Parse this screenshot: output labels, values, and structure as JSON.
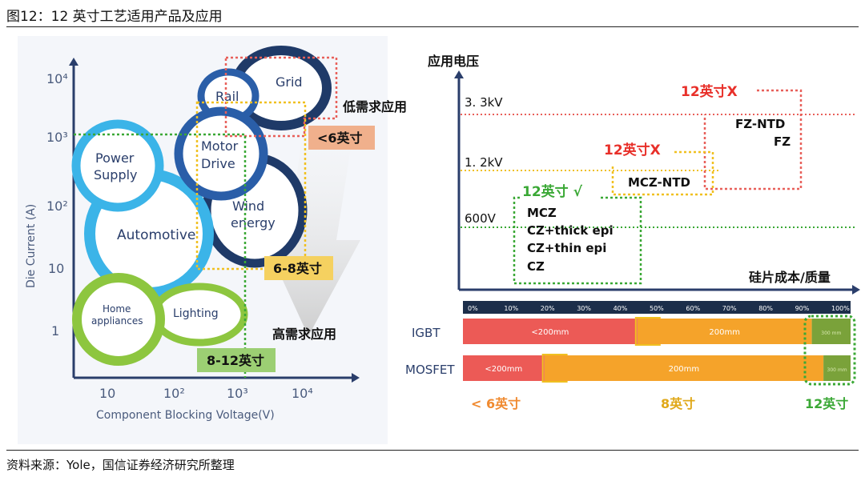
{
  "figure_title": "图12：12 英寸工艺适用产品及应用",
  "source": "资料来源：Yole，国信证券经济研究所整理",
  "colors": {
    "blue_dark": "#1f3a68",
    "blue_mid": "#2a5ea8",
    "blue_light": "#3bb4e8",
    "green": "#8dc63f",
    "red_dotted": "#e8605a",
    "yellow_dotted": "#f0c020",
    "green_dotted": "#3aa835",
    "orange_bar": "#f5a32a",
    "red_bar": "#ec5a56",
    "green_bar": "#7aa23a",
    "axis_blue": "#2a3e6b"
  },
  "chart_data": [
    {
      "type": "bubble",
      "panel": "left",
      "xlabel": "Component Blocking Voltage(V)",
      "ylabel": "Die Current (A)",
      "x_ticks": [
        "10",
        "10²",
        "10³",
        "10⁴"
      ],
      "y_ticks": [
        "1",
        "10",
        "10²",
        "10³",
        "10⁴"
      ],
      "bubbles": [
        {
          "name": "Grid",
          "color": "blue_dark"
        },
        {
          "name": "Rail",
          "color": "blue_mid"
        },
        {
          "name": "Motor Drive",
          "color": "blue_mid",
          "lines": [
            "Motor",
            "Drive"
          ]
        },
        {
          "name": "Wind energy",
          "color": "blue_dark",
          "lines": [
            "Wind",
            "energy"
          ]
        },
        {
          "name": "Power Supply",
          "color": "blue_light",
          "lines": [
            "Power",
            "Supply"
          ]
        },
        {
          "name": "Automotive",
          "color": "blue_light"
        },
        {
          "name": "Home appliances",
          "color": "green",
          "lines": [
            "Home",
            "appliances"
          ]
        },
        {
          "name": "Lighting",
          "color": "green"
        }
      ],
      "regions": [
        {
          "label": "<6英寸",
          "color": "red_dotted"
        },
        {
          "label": "6-8英寸",
          "color": "yellow_dotted"
        },
        {
          "label": "8-12英寸",
          "color": "green_dotted"
        }
      ],
      "annotations": [
        "低需求应用",
        "高需求应用"
      ]
    },
    {
      "type": "region",
      "panel": "top-right",
      "ylabel": "应用电压",
      "xlabel": "硅片成本/质量",
      "voltage_levels": [
        {
          "label": "3. 3kV",
          "value_kv": 3.3
        },
        {
          "label": "1. 2kV",
          "value_kv": 1.2
        },
        {
          "label": "600V",
          "value_kv": 0.6
        }
      ],
      "regions": [
        {
          "header": "12英寸X",
          "color": "red_dotted",
          "products": [
            "FZ-NTD",
            "FZ"
          ]
        },
        {
          "header": "12英寸X",
          "color": "yellow_dotted",
          "products": [
            "MCZ-NTD"
          ]
        },
        {
          "header": "12英寸 √",
          "color": "green_dotted",
          "products": [
            "MCZ",
            "CZ+thick epi",
            "CZ+thin epi",
            "CZ"
          ]
        }
      ]
    },
    {
      "type": "stacked_bar",
      "panel": "bottom-right",
      "x_ticks": [
        "0%",
        "10%",
        "20%",
        "30%",
        "40%",
        "50%",
        "60%",
        "70%",
        "80%",
        "90%",
        "100%"
      ],
      "categories": [
        "IGBT",
        "MOSFET"
      ],
      "series": [
        {
          "name": "<200mm",
          "color": "red_bar",
          "values": [
            45,
            21
          ]
        },
        {
          "name": "200mm",
          "color": "orange_bar",
          "values": [
            45,
            72
          ]
        },
        {
          "name": "300mm",
          "color": "green_bar",
          "values": [
            10,
            7
          ]
        }
      ],
      "segment_labels": {
        "IGBT": [
          "<200mm",
          "200mm",
          "300 mm"
        ],
        "MOSFET": [
          "<200mm",
          "200mm",
          "300 mm"
        ]
      },
      "bottom_labels": [
        "< 6英寸",
        "8英寸",
        "12英寸"
      ]
    }
  ]
}
